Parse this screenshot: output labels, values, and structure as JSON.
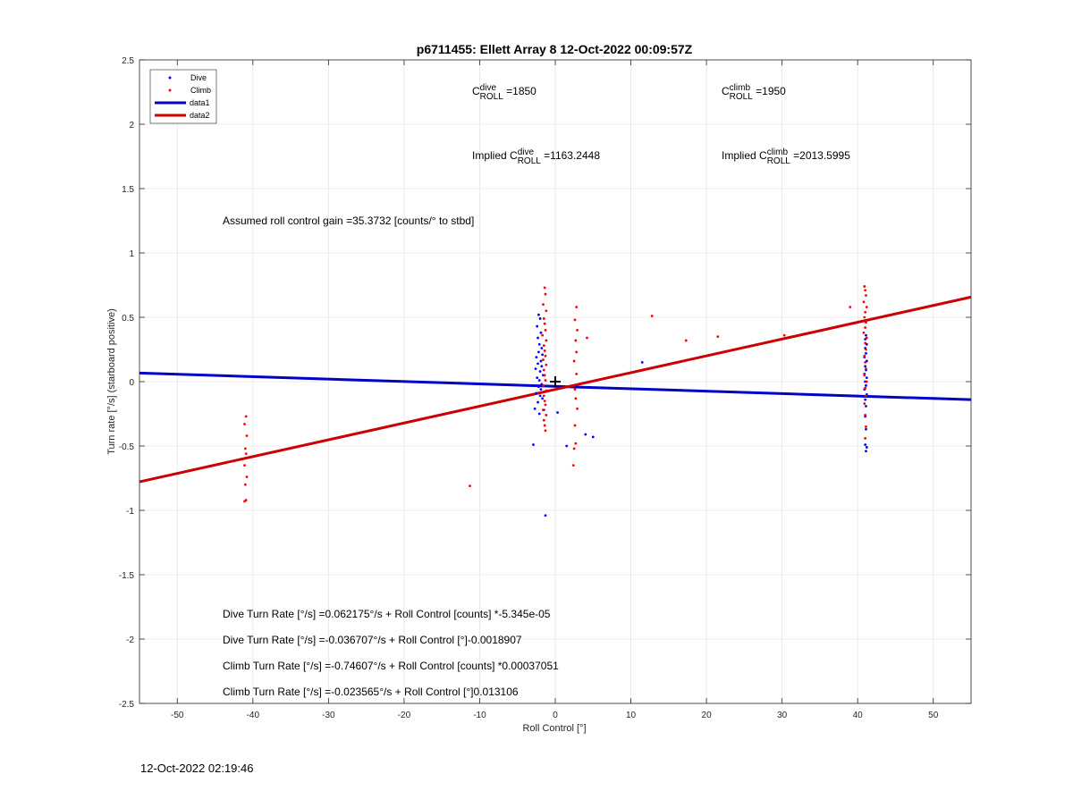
{
  "chart_data": {
    "type": "scatter",
    "title": "p6711455: Ellett Array 8 12-Oct-2022 00:09:57Z",
    "xlabel": "Roll Control [°]",
    "ylabel": "Turn rate [°/s] (starboard positive)",
    "xlim": [
      -55,
      55
    ],
    "ylim": [
      -2.5,
      2.5
    ],
    "xticks": [
      -50,
      -40,
      -30,
      -20,
      -10,
      0,
      10,
      20,
      30,
      40,
      50
    ],
    "yticks": [
      -2.5,
      -2,
      -1.5,
      -1,
      -0.5,
      0,
      0.5,
      1,
      1.5,
      2,
      2.5
    ],
    "grid": true,
    "legend_position": "top-left",
    "legend": [
      {
        "label": "Dive",
        "kind": "marker",
        "color": "#0000ff"
      },
      {
        "label": "Climb",
        "kind": "marker",
        "color": "#ff0000"
      },
      {
        "label": "data1",
        "kind": "line",
        "color": "#0000c8"
      },
      {
        "label": "data2",
        "kind": "line",
        "color": "#cc0000"
      }
    ],
    "series": [
      {
        "name": "Dive",
        "kind": "points",
        "color": "#0000ff",
        "points": [
          [
            -2.2,
            0.52
          ],
          [
            -2.0,
            0.49
          ],
          [
            -2.4,
            0.43
          ],
          [
            -1.9,
            0.38
          ],
          [
            -2.3,
            0.34
          ],
          [
            -2.1,
            0.29
          ],
          [
            -1.8,
            0.26
          ],
          [
            -2.2,
            0.23
          ],
          [
            -1.7,
            0.21
          ],
          [
            -2.5,
            0.19
          ],
          [
            -1.9,
            0.16
          ],
          [
            -2.3,
            0.14
          ],
          [
            -1.8,
            0.12
          ],
          [
            -2.6,
            0.1
          ],
          [
            -2.0,
            0.08
          ],
          [
            -1.6,
            0.05
          ],
          [
            -2.4,
            0.03
          ],
          [
            -2.1,
            0.01
          ],
          [
            -1.8,
            -0.02
          ],
          [
            -2.2,
            -0.04
          ],
          [
            -1.9,
            -0.06
          ],
          [
            -2.5,
            -0.09
          ],
          [
            -2.0,
            -0.11
          ],
          [
            -1.7,
            -0.13
          ],
          [
            -2.3,
            -0.16
          ],
          [
            -2.7,
            -0.21
          ],
          [
            -2.1,
            -0.25
          ],
          [
            -1.5,
            -0.22
          ],
          [
            -2.9,
            -0.49
          ],
          [
            -1.3,
            -1.04
          ],
          [
            0.3,
            -0.24
          ],
          [
            1.5,
            -0.5
          ],
          [
            4.0,
            -0.41
          ],
          [
            5.0,
            -0.43
          ],
          [
            11.5,
            0.15
          ],
          [
            41.1,
            0.36
          ],
          [
            41.0,
            0.33
          ],
          [
            41.2,
            0.29
          ],
          [
            41.0,
            0.26
          ],
          [
            41.1,
            0.22
          ],
          [
            40.9,
            0.19
          ],
          [
            41.2,
            0.16
          ],
          [
            41.0,
            0.12
          ],
          [
            41.1,
            0.09
          ],
          [
            40.9,
            0.06
          ],
          [
            41.2,
            0.03
          ],
          [
            41.0,
            0.0
          ],
          [
            41.1,
            -0.03
          ],
          [
            40.9,
            -0.06
          ],
          [
            41.2,
            -0.1
          ],
          [
            41.0,
            -0.14
          ],
          [
            41.1,
            -0.19
          ],
          [
            41.0,
            -0.27
          ],
          [
            41.1,
            -0.37
          ],
          [
            41.0,
            -0.49
          ],
          [
            41.2,
            -0.51
          ],
          [
            41.1,
            -0.54
          ]
        ]
      },
      {
        "name": "Climb",
        "kind": "points",
        "color": "#ff0000",
        "points": [
          [
            -1.4,
            0.73
          ],
          [
            -1.3,
            0.68
          ],
          [
            -1.6,
            0.6
          ],
          [
            -1.2,
            0.55
          ],
          [
            -1.5,
            0.49
          ],
          [
            -1.4,
            0.45
          ],
          [
            -1.3,
            0.4
          ],
          [
            -1.7,
            0.36
          ],
          [
            -1.2,
            0.32
          ],
          [
            -1.5,
            0.28
          ],
          [
            -1.4,
            0.24
          ],
          [
            -1.3,
            0.2
          ],
          [
            -1.6,
            0.17
          ],
          [
            -1.2,
            0.13
          ],
          [
            -1.5,
            0.09
          ],
          [
            -1.4,
            0.05
          ],
          [
            -1.3,
            0.01
          ],
          [
            -1.6,
            -0.03
          ],
          [
            -1.2,
            -0.07
          ],
          [
            -1.5,
            -0.11
          ],
          [
            -1.4,
            -0.15
          ],
          [
            -1.3,
            -0.18
          ],
          [
            -1.6,
            -0.22
          ],
          [
            -1.2,
            -0.26
          ],
          [
            -1.5,
            -0.3
          ],
          [
            -1.4,
            -0.34
          ],
          [
            -1.3,
            -0.38
          ],
          [
            2.8,
            0.58
          ],
          [
            2.6,
            0.48
          ],
          [
            2.9,
            0.4
          ],
          [
            2.7,
            0.32
          ],
          [
            2.8,
            0.23
          ],
          [
            2.5,
            0.16
          ],
          [
            2.8,
            0.06
          ],
          [
            2.6,
            -0.06
          ],
          [
            2.7,
            -0.13
          ],
          [
            2.9,
            -0.21
          ],
          [
            2.6,
            -0.34
          ],
          [
            2.7,
            -0.48
          ],
          [
            2.5,
            -0.52
          ],
          [
            2.4,
            -0.65
          ],
          [
            4.2,
            0.34
          ],
          [
            12.8,
            0.51
          ],
          [
            17.3,
            0.32
          ],
          [
            21.5,
            0.35
          ],
          [
            30.3,
            0.36
          ],
          [
            39.0,
            0.58
          ],
          [
            -11.3,
            -0.81
          ],
          [
            -40.9,
            -0.27
          ],
          [
            -41.1,
            -0.33
          ],
          [
            -40.8,
            -0.42
          ],
          [
            -41.0,
            -0.52
          ],
          [
            -40.9,
            -0.56
          ],
          [
            -41.1,
            -0.65
          ],
          [
            -40.8,
            -0.74
          ],
          [
            -41.0,
            -0.8
          ],
          [
            -40.9,
            -0.92
          ],
          [
            -41.1,
            -0.93
          ],
          [
            40.9,
            0.74
          ],
          [
            41.0,
            0.71
          ],
          [
            41.1,
            0.67
          ],
          [
            40.8,
            0.62
          ],
          [
            41.2,
            0.58
          ],
          [
            41.0,
            0.54
          ],
          [
            40.9,
            0.5
          ],
          [
            41.1,
            0.46
          ],
          [
            41.0,
            0.42
          ],
          [
            40.8,
            0.38
          ],
          [
            41.2,
            0.34
          ],
          [
            41.0,
            0.3
          ],
          [
            41.1,
            0.25
          ],
          [
            40.9,
            0.2
          ],
          [
            41.0,
            0.15
          ],
          [
            41.1,
            0.1
          ],
          [
            40.9,
            0.05
          ],
          [
            41.2,
            0.0
          ],
          [
            41.0,
            -0.05
          ],
          [
            41.1,
            -0.11
          ],
          [
            40.9,
            -0.17
          ],
          [
            41.0,
            -0.26
          ],
          [
            41.1,
            -0.35
          ],
          [
            41.0,
            -0.44
          ]
        ]
      },
      {
        "name": "data1",
        "kind": "line",
        "color": "#0000c8",
        "x": [
          -55,
          55
        ],
        "y": [
          0.067,
          -0.14
        ]
      },
      {
        "name": "data2",
        "kind": "line",
        "color": "#cc0000",
        "x": [
          -55,
          55
        ],
        "y": [
          -0.778,
          0.657
        ]
      }
    ],
    "center_marker": {
      "x": 0,
      "y": 0,
      "symbol": "+"
    },
    "annotations": {
      "c_roll_dive": {
        "prefix": "C",
        "sup": "dive",
        "sub": "ROLL",
        "suffix": " =1850"
      },
      "c_roll_climb": {
        "prefix": "C",
        "sup": "climb",
        "sub": "ROLL",
        "suffix": " =1950"
      },
      "implied_dive": {
        "prefix": "Implied C",
        "sup": "dive",
        "sub": "ROLL",
        "suffix": " =1163.2448"
      },
      "implied_climb": {
        "prefix": "Implied C",
        "sup": "climb",
        "sub": "ROLL",
        "suffix": " =2013.5995"
      },
      "gain": "Assumed roll control gain =35.3732 [counts/° to stbd]",
      "eq_lines": [
        "Dive Turn Rate [°/s] =0.062175°/s + Roll Control [counts] *-5.345e-05",
        "Dive Turn Rate [°/s] =-0.036707°/s + Roll Control [°]-0.0018907",
        "Climb Turn Rate [°/s] =-0.74607°/s + Roll Control [counts] *0.00037051",
        "Climb Turn Rate [°/s] =-0.023565°/s + Roll Control [°]0.013106"
      ]
    }
  },
  "footer": {
    "timestamp": "12-Oct-2022 02:19:46"
  }
}
